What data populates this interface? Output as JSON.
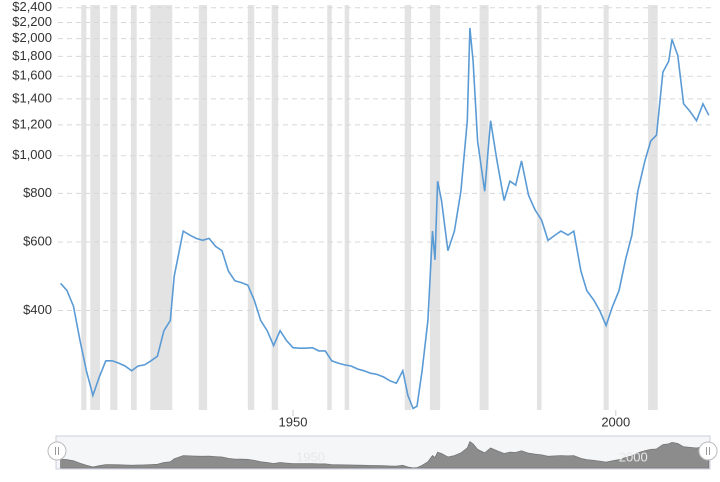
{
  "chart_data": {
    "type": "line",
    "log_scale": true,
    "grid": true,
    "xlim": [
      1913.6,
      2014.9
    ],
    "xticks": [
      1950,
      2000
    ],
    "ylim": [
      222,
      2440
    ],
    "yticks": [
      {
        "value": 400,
        "label": "$400"
      },
      {
        "value": 600,
        "label": "$600"
      },
      {
        "value": 800,
        "label": "$800"
      },
      {
        "value": 1000,
        "label": "$1,000"
      },
      {
        "value": 1200,
        "label": "$1,200"
      },
      {
        "value": 1400,
        "label": "$1,400"
      },
      {
        "value": 1600,
        "label": "$1,600"
      },
      {
        "value": 1800,
        "label": "$1,800"
      },
      {
        "value": 2000,
        "label": "$2,000"
      },
      {
        "value": 2200,
        "label": "$2,200"
      },
      {
        "value": 2400,
        "label": "$2,400"
      }
    ],
    "recession_color": "#e3e3e3",
    "recessions": [
      [
        1917.2,
        1918.0
      ],
      [
        1918.6,
        1920.1
      ],
      [
        1921.7,
        1922.8
      ],
      [
        1924.9,
        1925.8
      ],
      [
        1927.9,
        1931.3
      ],
      [
        1935.4,
        1936.7
      ],
      [
        1943.0,
        1944.0
      ],
      [
        1946.7,
        1947.7
      ],
      [
        1955.3,
        1956.0
      ],
      [
        1958.0,
        1958.7
      ],
      [
        1967.3,
        1968.3
      ],
      [
        1971.2,
        1972.8
      ],
      [
        1978.9,
        1980.3
      ],
      [
        1987.8,
        1988.5
      ],
      [
        1998.1,
        1998.9
      ],
      [
        2005.0,
        2006.5
      ]
    ],
    "series": [
      {
        "color": "#5b9bd5",
        "x": [
          1914,
          1915,
          1916,
          1917,
          1918,
          1919,
          1920,
          1921,
          1922,
          1923,
          1924,
          1925,
          1926,
          1927,
          1928,
          1929,
          1930,
          1931,
          1931.6,
          1933,
          1934,
          1935,
          1936,
          1937,
          1938,
          1939,
          1940,
          1941,
          1942,
          1943,
          1944,
          1945,
          1946,
          1947,
          1948,
          1949,
          1950,
          1951,
          1952,
          1953,
          1954,
          1955,
          1956,
          1957,
          1958,
          1959,
          1960,
          1961,
          1962,
          1963,
          1964,
          1965,
          1966,
          1967,
          1967.8,
          1968.6,
          1969.2,
          1970,
          1970.9,
          1971.6,
          1972,
          1972.4,
          1973,
          1974,
          1975,
          1976,
          1977,
          1977.4,
          1977.9,
          1978.6,
          1979.7,
          1980.6,
          1981.6,
          1982.7,
          1983.6,
          1984.5,
          1985.4,
          1986.5,
          1987.5,
          1988.5,
          1989.5,
          1990.6,
          1991.5,
          1992.6,
          1993.5,
          1994.6,
          1995.5,
          1996.6,
          1997.5,
          1998.5,
          1999.5,
          2000.5,
          2001.5,
          2002.5,
          2003.4,
          2004.5,
          2005.4,
          2006.3,
          2007.3,
          2008.2,
          2008.7,
          2009.6,
          2010.5,
          2011.5,
          2012.5,
          2013.5,
          2014.4
        ],
        "values": [
          470,
          450,
          410,
          335,
          280,
          242,
          270,
          297,
          297,
          293,
          288,
          280,
          288,
          290,
          297,
          305,
          355,
          377,
          490,
          640,
          625,
          613,
          606,
          613,
          585,
          570,
          505,
          477,
          472,
          465,
          425,
          377,
          355,
          325,
          355,
          335,
          321,
          320,
          320,
          321,
          315,
          315,
          297,
          293,
          290,
          288,
          283,
          280,
          276,
          274,
          270,
          264,
          260,
          280,
          242,
          224,
          227,
          280,
          377,
          640,
          540,
          860,
          767,
          570,
          640,
          810,
          1230,
          2130,
          1750,
          1090,
          810,
          1230,
          970,
          767,
          860,
          840,
          970,
          790,
          725,
          683,
          606,
          625,
          640,
          625,
          640,
          505,
          450,
          425,
          400,
          366,
          410,
          450,
          540,
          625,
          810,
          970,
          1090,
          1130,
          1640,
          1750,
          1990,
          1810,
          1360,
          1300,
          1230,
          1360,
          1270
        ]
      }
    ]
  }
}
